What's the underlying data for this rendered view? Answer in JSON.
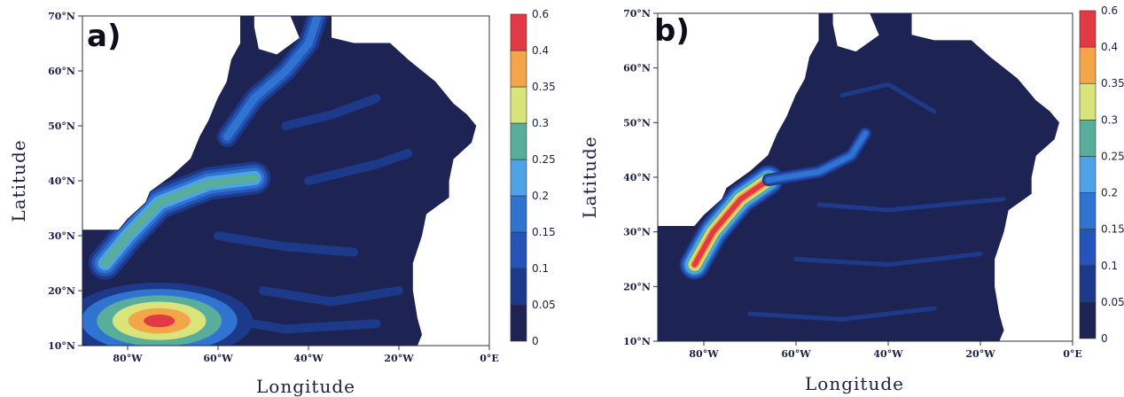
{
  "chart_data": [
    {
      "type": "heatmap",
      "panel_label": "a)",
      "xlabel": "Longitude",
      "ylabel": "Latitude",
      "x_ticks": [
        "80°W",
        "60°W",
        "40°W",
        "20°W",
        "0°E"
      ],
      "x_tick_values": [
        -80,
        -60,
        -40,
        -20,
        0
      ],
      "y_ticks": [
        "10°N",
        "20°N",
        "30°N",
        "40°N",
        "50°N",
        "60°N",
        "70°N"
      ],
      "y_tick_values": [
        10,
        20,
        30,
        40,
        50,
        60,
        70
      ],
      "xlim": [
        -90,
        0
      ],
      "ylim": [
        10,
        70
      ],
      "colorbar": {
        "levels": [
          "0",
          "0.05",
          "0.1",
          "0.15",
          "0.2",
          "0.25",
          "0.3",
          "0.35",
          "0.4",
          "0.6"
        ],
        "colors": [
          "#1d2352",
          "#1d3a8a",
          "#2553b7",
          "#2f74d0",
          "#4ea2e6",
          "#58ad9b",
          "#d9e57a",
          "#f3a649",
          "#e23a44"
        ]
      },
      "features": [
        {
          "name": "gulf stream band",
          "level": 0.3,
          "points": [
            [
              -85,
              25
            ],
            [
              -80,
              30
            ],
            [
              -73,
              36
            ],
            [
              -62,
              39.5
            ],
            [
              -52,
              40.5
            ]
          ]
        },
        {
          "name": "caribbean maximum",
          "level": 0.6,
          "lon": -73,
          "lat": 14.5
        },
        {
          "name": "subpolar band",
          "level": 0.2,
          "points": [
            [
              -58,
              48
            ],
            [
              -52,
              55
            ],
            [
              -45,
              60
            ],
            [
              -40,
              65
            ],
            [
              -38,
              70
            ]
          ]
        }
      ]
    },
    {
      "type": "heatmap",
      "panel_label": "b)",
      "xlabel": "Longitude",
      "ylabel": "Latitude",
      "x_ticks": [
        "80°W",
        "60°W",
        "40°W",
        "20°W",
        "0°E"
      ],
      "x_tick_values": [
        -80,
        -60,
        -40,
        -20,
        0
      ],
      "y_ticks": [
        "10°N",
        "20°N",
        "30°N",
        "40°N",
        "50°N",
        "60°N",
        "70°N"
      ],
      "y_tick_values": [
        10,
        20,
        30,
        40,
        50,
        60,
        70
      ],
      "xlim": [
        -90,
        0
      ],
      "ylim": [
        10,
        70
      ],
      "colorbar": {
        "levels": [
          "0",
          "0.05",
          "0.1",
          "0.15",
          "0.2",
          "0.25",
          "0.3",
          "0.35",
          "0.4",
          "0.6"
        ],
        "colors": [
          "#1d2352",
          "#1d3a8a",
          "#2553b7",
          "#2f74d0",
          "#4ea2e6",
          "#58ad9b",
          "#d9e57a",
          "#f3a649",
          "#e23a44"
        ]
      },
      "features": [
        {
          "name": "gulf stream band",
          "level": 0.6,
          "points": [
            [
              -82,
              24
            ],
            [
              -78,
              30
            ],
            [
              -72,
              36
            ],
            [
              -66,
              39.5
            ]
          ]
        },
        {
          "name": "north atlantic current",
          "level": 0.2,
          "points": [
            [
              -66,
              39.5
            ],
            [
              -55,
              41
            ],
            [
              -48,
              44
            ],
            [
              -45,
              48
            ]
          ]
        }
      ]
    }
  ]
}
